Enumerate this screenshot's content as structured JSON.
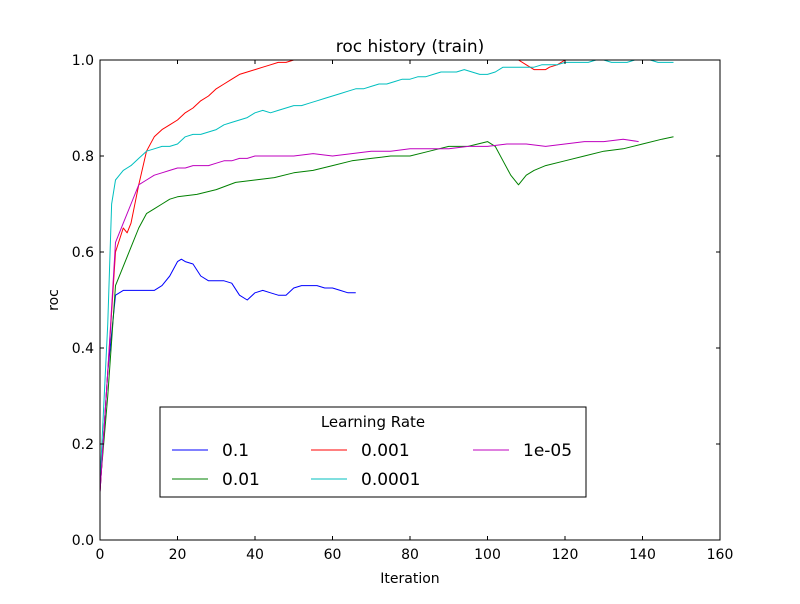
{
  "chart_data": {
    "type": "line",
    "title": "roc history (train)",
    "xlabel": "Iteration",
    "ylabel": "roc",
    "xlim": [
      0,
      160
    ],
    "ylim": [
      0.0,
      1.0
    ],
    "xticks": [
      0,
      20,
      40,
      60,
      80,
      100,
      120,
      140,
      160
    ],
    "yticks": [
      0.0,
      0.2,
      0.4,
      0.6,
      0.8,
      1.0
    ],
    "xtick_labels": [
      "0",
      "20",
      "40",
      "60",
      "80",
      "100",
      "120",
      "140",
      "160"
    ],
    "ytick_labels": [
      "0.0",
      "0.2",
      "0.4",
      "0.6",
      "0.8",
      "1.0"
    ],
    "grid": false,
    "legend": {
      "title": "Learning Rate",
      "placement": "lower-center",
      "columns": 3
    },
    "series": [
      {
        "name": "0.1",
        "color": "#0000ff",
        "x": [
          0,
          2,
          4,
          6,
          8,
          10,
          12,
          14,
          16,
          18,
          20,
          21,
          22,
          24,
          26,
          28,
          30,
          32,
          34,
          36,
          38,
          40,
          42,
          44,
          46,
          48,
          50,
          52,
          54,
          56,
          58,
          60,
          62,
          64,
          66
        ],
        "y": [
          0.1,
          0.35,
          0.51,
          0.52,
          0.52,
          0.52,
          0.52,
          0.52,
          0.53,
          0.55,
          0.58,
          0.585,
          0.58,
          0.575,
          0.55,
          0.54,
          0.54,
          0.54,
          0.535,
          0.51,
          0.5,
          0.515,
          0.52,
          0.515,
          0.51,
          0.51,
          0.525,
          0.53,
          0.53,
          0.53,
          0.525,
          0.525,
          0.52,
          0.515,
          0.515
        ]
      },
      {
        "name": "0.01",
        "color": "#008000",
        "x": [
          0,
          2,
          4,
          6,
          8,
          10,
          12,
          14,
          16,
          18,
          20,
          25,
          30,
          35,
          40,
          45,
          50,
          55,
          60,
          65,
          70,
          75,
          80,
          85,
          90,
          95,
          100,
          102,
          104,
          106,
          108,
          110,
          112,
          115,
          120,
          125,
          130,
          135,
          140,
          145,
          148
        ],
        "y": [
          0.11,
          0.3,
          0.53,
          0.57,
          0.61,
          0.65,
          0.68,
          0.69,
          0.7,
          0.71,
          0.715,
          0.72,
          0.73,
          0.745,
          0.75,
          0.755,
          0.765,
          0.77,
          0.78,
          0.79,
          0.795,
          0.8,
          0.8,
          0.81,
          0.82,
          0.82,
          0.83,
          0.82,
          0.79,
          0.76,
          0.74,
          0.76,
          0.77,
          0.78,
          0.79,
          0.8,
          0.81,
          0.815,
          0.825,
          0.835,
          0.84
        ]
      },
      {
        "name": "0.001",
        "color": "#ff0000",
        "x": [
          0,
          2,
          4,
          6,
          7,
          8,
          10,
          12,
          14,
          16,
          18,
          20,
          22,
          24,
          26,
          28,
          30,
          32,
          34,
          36,
          38,
          40,
          42,
          44,
          46,
          48,
          50,
          55,
          60,
          65,
          70,
          80,
          90,
          100,
          108,
          110,
          112,
          115,
          116,
          118,
          120,
          130,
          140,
          148
        ],
        "y": [
          0.1,
          0.35,
          0.6,
          0.65,
          0.64,
          0.66,
          0.74,
          0.81,
          0.84,
          0.855,
          0.865,
          0.875,
          0.89,
          0.9,
          0.915,
          0.925,
          0.94,
          0.95,
          0.96,
          0.97,
          0.975,
          0.98,
          0.985,
          0.99,
          0.995,
          0.995,
          1.0,
          1.0,
          1.0,
          1.0,
          1.0,
          1.0,
          1.0,
          1.0,
          1.0,
          0.99,
          0.98,
          0.98,
          0.985,
          0.99,
          1.0,
          1.0,
          1.0,
          1.0
        ]
      },
      {
        "name": "0.0001",
        "color": "#00bfbf",
        "x": [
          0,
          2,
          3,
          4,
          5,
          6,
          8,
          10,
          12,
          14,
          16,
          18,
          20,
          22,
          24,
          26,
          28,
          30,
          32,
          34,
          36,
          38,
          40,
          42,
          44,
          46,
          48,
          50,
          52,
          54,
          56,
          58,
          60,
          62,
          64,
          66,
          68,
          70,
          72,
          74,
          76,
          78,
          80,
          82,
          84,
          86,
          88,
          90,
          92,
          94,
          96,
          98,
          100,
          102,
          104,
          106,
          108,
          110,
          112,
          114,
          116,
          118,
          120,
          122,
          124,
          126,
          128,
          130,
          132,
          134,
          136,
          138,
          140,
          142,
          144,
          146,
          148
        ],
        "y": [
          0.12,
          0.45,
          0.7,
          0.75,
          0.76,
          0.77,
          0.78,
          0.795,
          0.81,
          0.815,
          0.82,
          0.82,
          0.825,
          0.84,
          0.845,
          0.845,
          0.85,
          0.855,
          0.865,
          0.87,
          0.875,
          0.88,
          0.89,
          0.895,
          0.89,
          0.895,
          0.9,
          0.905,
          0.905,
          0.91,
          0.915,
          0.92,
          0.925,
          0.93,
          0.935,
          0.94,
          0.94,
          0.945,
          0.95,
          0.95,
          0.955,
          0.96,
          0.96,
          0.965,
          0.965,
          0.97,
          0.975,
          0.975,
          0.975,
          0.98,
          0.975,
          0.97,
          0.97,
          0.975,
          0.985,
          0.985,
          0.985,
          0.985,
          0.985,
          0.99,
          0.99,
          0.99,
          0.995,
          0.995,
          0.995,
          0.995,
          1.0,
          1.0,
          0.995,
          0.995,
          0.995,
          1.0,
          1.0,
          1.0,
          0.995,
          0.995,
          0.995
        ]
      },
      {
        "name": "1e-05",
        "color": "#bf00bf",
        "x": [
          0,
          2,
          4,
          6,
          8,
          10,
          12,
          14,
          16,
          18,
          20,
          22,
          24,
          26,
          28,
          30,
          32,
          34,
          36,
          38,
          40,
          45,
          50,
          55,
          60,
          65,
          70,
          75,
          80,
          85,
          90,
          95,
          100,
          105,
          110,
          115,
          120,
          125,
          130,
          135,
          139
        ],
        "y": [
          0.1,
          0.35,
          0.62,
          0.66,
          0.7,
          0.74,
          0.75,
          0.76,
          0.765,
          0.77,
          0.775,
          0.775,
          0.78,
          0.78,
          0.78,
          0.785,
          0.79,
          0.79,
          0.795,
          0.795,
          0.8,
          0.8,
          0.8,
          0.805,
          0.8,
          0.805,
          0.81,
          0.81,
          0.815,
          0.815,
          0.815,
          0.82,
          0.82,
          0.825,
          0.825,
          0.82,
          0.825,
          0.83,
          0.83,
          0.835,
          0.83
        ]
      }
    ]
  }
}
